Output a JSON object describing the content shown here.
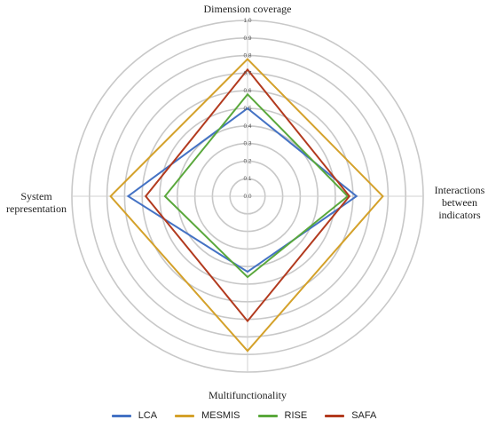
{
  "chart_data": {
    "type": "radar",
    "title": "",
    "axes": [
      "Dimension coverage",
      "Interactions between indicators",
      "Multifunctionality",
      "System representation"
    ],
    "axis_display": {
      "top": "Dimension coverage",
      "right": "Interactions between indicators",
      "bottom": "Multifunctionality",
      "left": "System representation"
    },
    "rmin": 0,
    "rmax": 1,
    "ticks": [
      "0.0",
      "0.1",
      "0.2",
      "0.3",
      "0.4",
      "0.5",
      "0.6",
      "0.7",
      "0.8",
      "0.9",
      "1.0"
    ],
    "grid": true,
    "legend_position": "bottom",
    "series": [
      {
        "name": "LCA",
        "color": "#4472c4",
        "values": [
          0.5,
          0.62,
          0.43,
          0.68
        ]
      },
      {
        "name": "MESMIS",
        "color": "#d4a12a",
        "values": [
          0.78,
          0.77,
          0.88,
          0.78
        ]
      },
      {
        "name": "RISE",
        "color": "#5aa83c",
        "values": [
          0.58,
          0.57,
          0.46,
          0.47
        ]
      },
      {
        "name": "SAFA",
        "color": "#b23a1e",
        "values": [
          0.72,
          0.58,
          0.71,
          0.58
        ]
      }
    ]
  }
}
